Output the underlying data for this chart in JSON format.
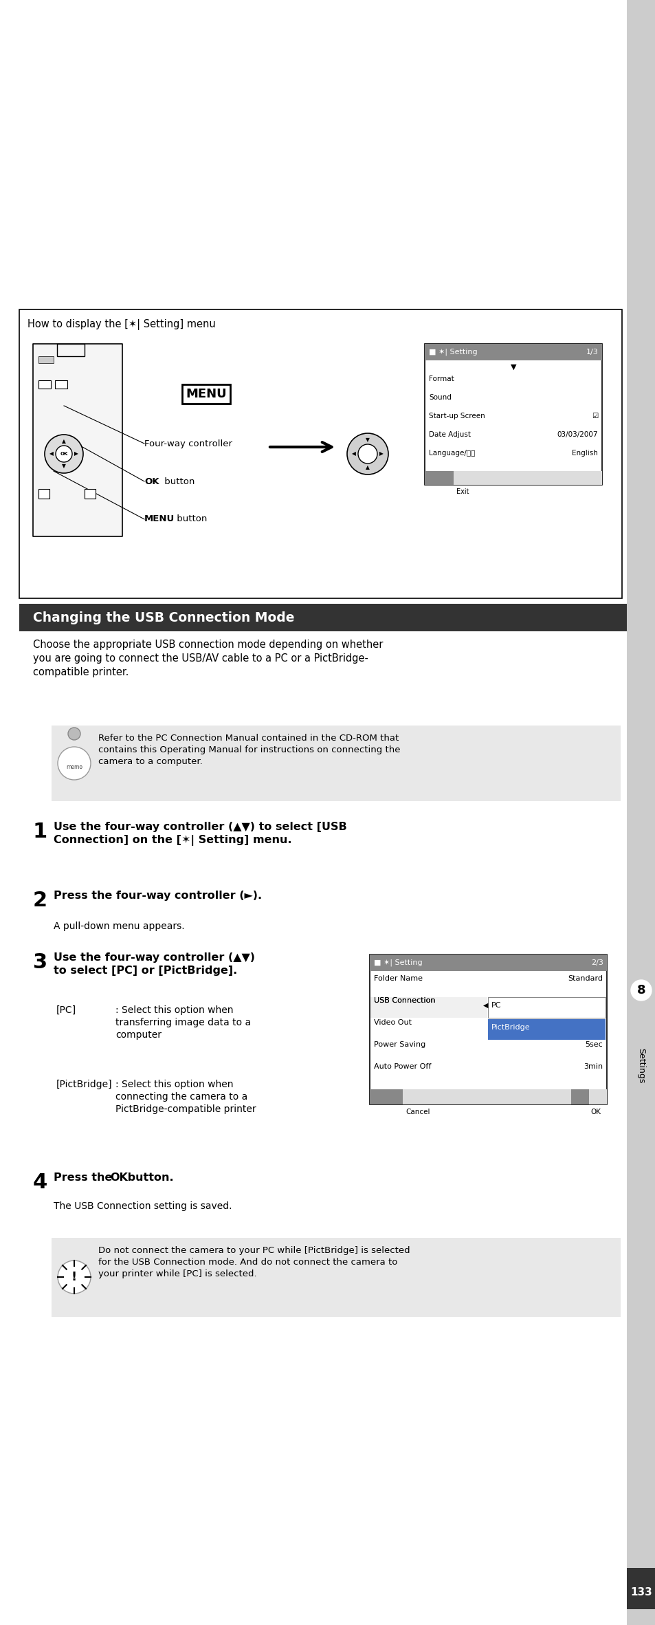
{
  "page_bg": "#ffffff",
  "sidebar_color": "#cccccc",
  "header_section_bg": "#333333",
  "header_section_text": "#ffffff",
  "header_section_title": "Changing the USB Connection Mode",
  "memo_bg": "#e8e8e8",
  "page_number": "133",
  "sidebar_number": "8",
  "sidebar_label": "Settings",
  "screen1_items": [
    "Format",
    "Sound",
    "Start-up Screen",
    "Date Adjust",
    "Language/言語"
  ],
  "screen1_values": [
    "",
    "",
    "☑",
    "03/03/2007",
    "English"
  ],
  "screen2_items": [
    "Folder Name",
    "USB Connection",
    "Video Out",
    "Power Saving",
    "Auto Power Off"
  ],
  "screen2_values": [
    "Standard",
    "",
    "",
    "5sec",
    "3min"
  ],
  "screen2_dropdown": [
    "PC",
    "PictBridge"
  ],
  "intro_text": "Choose the appropriate USB connection mode depending on whether\nyou are going to connect the USB/AV cable to a PC or a PictBridge-\ncompatible printer.",
  "memo_text": "Refer to the PC Connection Manual contained in the CD-ROM that\ncontains this Operating Manual for instructions on connecting the\ncamera to a computer.",
  "step1_num": "1",
  "step1_text": "Use the four-way controller (▲▼) to select [USB\nConnection] on the [✶| Setting] menu.",
  "step2_num": "2",
  "step2_text": "Press the four-way controller (►).",
  "step2_sub": "A pull-down menu appears.",
  "step3_num": "3",
  "step3_text": "Use the four-way controller (▲▼)\nto select [PC] or [PictBridge].",
  "step3_pc_label": "[PC]",
  "step3_pc_desc": ": Select this option when\ntransferring image data to a\ncomputer",
  "step3_pb_label": "[PictBridge]",
  "step3_pb_desc": ": Select this option when\nconnecting the camera to a\nPictBridge-compatible printer",
  "step4_num": "4",
  "step4_text": "Press the OK button.",
  "step4_sub": "The USB Connection setting is saved.",
  "warning_text": "Do not connect the camera to your PC while [PictBridge] is selected\nfor the USB Connection mode. And do not connect the camera to\nyour printer while [PC] is selected."
}
